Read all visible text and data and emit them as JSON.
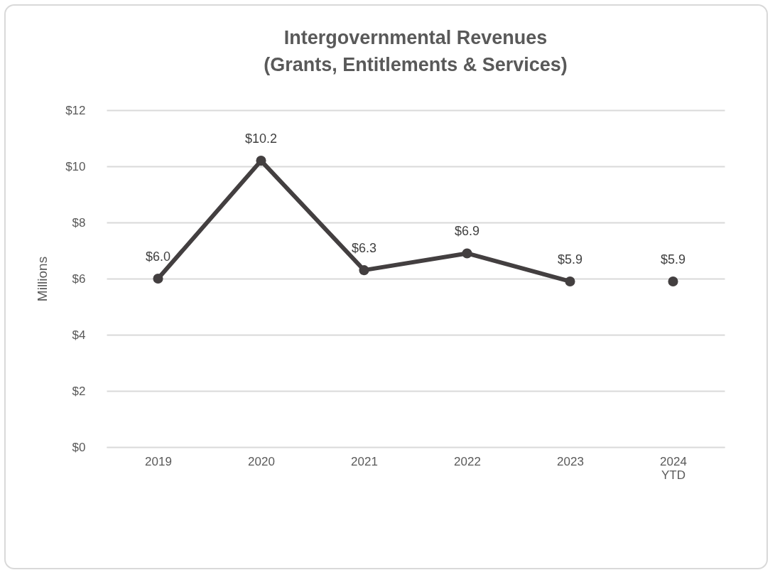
{
  "chart_data": {
    "type": "line",
    "title": "Intergovernmental Revenues\n(Grants, Entitlements & Services)",
    "ylabel": "Millions",
    "categories": [
      "2019",
      "2020",
      "2021",
      "2022",
      "2023",
      "2024 YTD"
    ],
    "series": [
      {
        "color": "#433f40",
        "values": [
          6.0,
          10.2,
          6.3,
          6.9,
          5.9,
          null
        ],
        "value_labels": [
          "$6.0",
          "$10.2",
          "$6.3",
          "$6.9",
          "$5.9",
          null
        ]
      },
      {
        "type": "scatter",
        "color": "#433f40",
        "values": [
          null,
          null,
          null,
          null,
          null,
          5.9
        ],
        "value_labels": [
          null,
          null,
          null,
          null,
          null,
          "$5.9"
        ]
      }
    ],
    "ylim": [
      0,
      12
    ],
    "yticks": [
      {
        "value": 0,
        "label": "$0"
      },
      {
        "value": 2,
        "label": "$2"
      },
      {
        "value": 4,
        "label": "$4"
      },
      {
        "value": 6,
        "label": "$6"
      },
      {
        "value": 8,
        "label": "$8"
      },
      {
        "value": 10,
        "label": "$10"
      },
      {
        "value": 12,
        "label": "$12"
      }
    ],
    "grid": "y",
    "marker": "circle"
  }
}
